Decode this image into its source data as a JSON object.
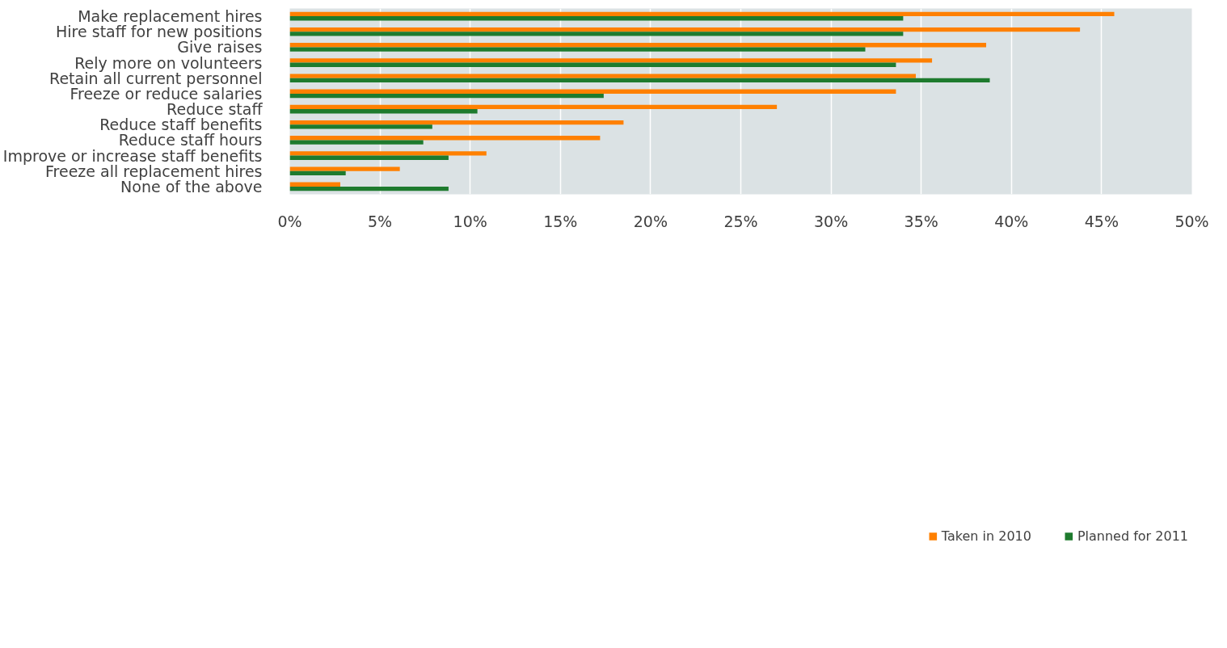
{
  "chart_data": {
    "type": "bar",
    "orientation": "horizontal",
    "categories": [
      "Make replacement hires",
      "Hire staff for new positions",
      "Give raises",
      "Rely more on volunteers",
      "Retain all current personnel",
      "Freeze or reduce salaries",
      "Reduce staff",
      "Reduce staff benefits",
      "Reduce staff hours",
      "Improve or increase staff benefits",
      "Freeze all replacement hires",
      "None of the above"
    ],
    "series": [
      {
        "name": "Taken in 2010",
        "color": "#ff8000",
        "values": [
          45.7,
          43.8,
          38.6,
          35.6,
          34.7,
          33.6,
          27.0,
          18.5,
          17.2,
          10.9,
          6.1,
          2.8
        ]
      },
      {
        "name": "Planned for 2011",
        "color": "#1e7b2e",
        "values": [
          34.0,
          34.0,
          31.9,
          33.6,
          38.8,
          17.4,
          10.4,
          7.9,
          7.4,
          8.8,
          3.1,
          8.8
        ]
      }
    ],
    "xlim": [
      0,
      50
    ],
    "xticks": [
      {
        "value": 0,
        "label": "0%"
      },
      {
        "value": 5,
        "label": "5%"
      },
      {
        "value": 10,
        "label": "10%"
      },
      {
        "value": 15,
        "label": "15%"
      },
      {
        "value": 20,
        "label": "20%"
      },
      {
        "value": 25,
        "label": "25%"
      },
      {
        "value": 30,
        "label": "30%"
      },
      {
        "value": 35,
        "label": "35%"
      },
      {
        "value": 40,
        "label": "40%"
      },
      {
        "value": 45,
        "label": "45%"
      },
      {
        "value": 50,
        "label": "50%"
      }
    ],
    "grid": "x",
    "legend": "bottom right"
  }
}
